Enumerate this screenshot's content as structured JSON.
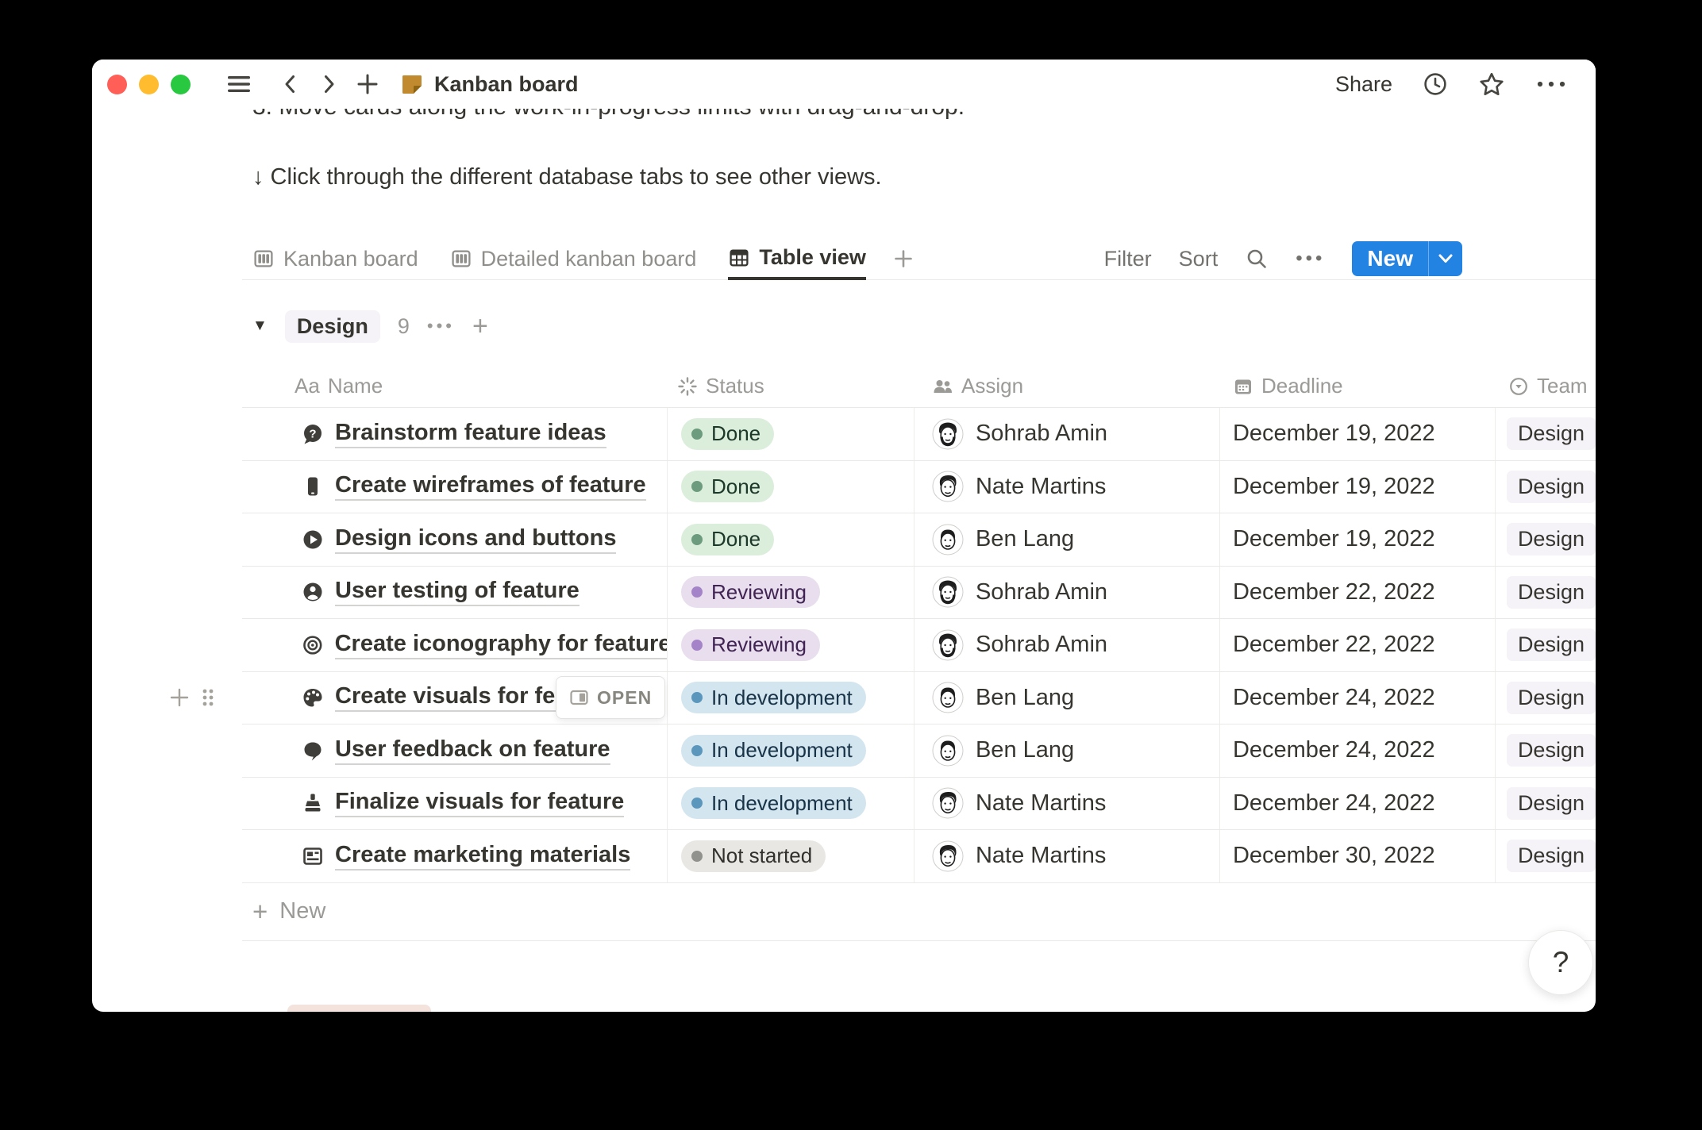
{
  "titlebar": {
    "title": "Kanban board",
    "share_label": "Share"
  },
  "intro": {
    "clipped_line": "3. Move cards along the work-in-progress limits with drag-and-drop.",
    "hint_line": "↓ Click through the different database tabs to see other views."
  },
  "toolbar": {
    "tabs": [
      {
        "label": "Kanban board",
        "icon": "board-icon",
        "active": false
      },
      {
        "label": "Detailed kanban board",
        "icon": "board-icon",
        "active": false
      },
      {
        "label": "Table view",
        "icon": "table-icon",
        "active": true
      }
    ],
    "filter_label": "Filter",
    "sort_label": "Sort",
    "new_label": "New"
  },
  "group": {
    "name": "Design",
    "count": "9"
  },
  "table": {
    "aa_icon_text": "Aa",
    "headers": [
      {
        "label": "Name",
        "icon": "text-icon"
      },
      {
        "label": "Status",
        "icon": "spinner-icon"
      },
      {
        "label": "Assign",
        "icon": "people-icon"
      },
      {
        "label": "Deadline",
        "icon": "calendar-icon"
      },
      {
        "label": "Team",
        "icon": "select-icon"
      }
    ],
    "rows": [
      {
        "icon": "question-bubble",
        "name": "Brainstorm feature ideas",
        "status": "Done",
        "status_color": "green",
        "assignee": "Sohrab Amin",
        "avatar": "sohrab",
        "deadline": "December 19, 2022",
        "team": "Design"
      },
      {
        "icon": "mobile-phone",
        "name": "Create wireframes of feature",
        "status": "Done",
        "status_color": "green",
        "assignee": "Nate Martins",
        "avatar": "nate",
        "deadline": "December 19, 2022",
        "team": "Design"
      },
      {
        "icon": "play-button",
        "name": "Design icons and buttons",
        "status": "Done",
        "status_color": "green",
        "assignee": "Ben Lang",
        "avatar": "ben",
        "deadline": "December 19, 2022",
        "team": "Design"
      },
      {
        "icon": "person",
        "name": "User testing of feature",
        "status": "Reviewing",
        "status_color": "purple",
        "assignee": "Sohrab Amin",
        "avatar": "sohrab",
        "deadline": "December 22, 2022",
        "team": "Design"
      },
      {
        "icon": "target",
        "name": "Create iconography for feature",
        "status": "Reviewing",
        "status_color": "purple",
        "assignee": "Sohrab Amin",
        "avatar": "sohrab",
        "deadline": "December 22, 2022",
        "team": "Design"
      },
      {
        "icon": "palette",
        "name": "Create visuals for feature",
        "status": "In development",
        "status_color": "blue",
        "assignee": "Ben Lang",
        "avatar": "ben",
        "deadline": "December 24, 2022",
        "team": "Design",
        "hovered": true
      },
      {
        "icon": "speech-bubble",
        "name": "User feedback on feature",
        "status": "In development",
        "status_color": "blue",
        "assignee": "Ben Lang",
        "avatar": "ben",
        "deadline": "December 24, 2022",
        "team": "Design"
      },
      {
        "icon": "paintbrush",
        "name": "Finalize visuals for feature",
        "status": "In development",
        "status_color": "blue",
        "assignee": "Nate Martins",
        "avatar": "nate",
        "deadline": "December 24, 2022",
        "team": "Design"
      },
      {
        "icon": "newspaper",
        "name": "Create marketing materials",
        "status": "Not started",
        "status_color": "gray",
        "assignee": "Nate Martins",
        "avatar": "nate",
        "deadline": "December 30, 2022",
        "team": "Design"
      }
    ],
    "new_row_label": "New"
  },
  "row_hover": {
    "open_label": "OPEN"
  },
  "help_button_label": "?",
  "colors": {
    "accent_blue": "#2383E2",
    "team_tag_bg": "#F5F2F8",
    "traffic_lights": [
      "#FF5F57",
      "#FEBC2E",
      "#28C840"
    ],
    "status": {
      "green": {
        "bg": "#DBEDDB",
        "dot": "#6C9B7D",
        "text": "#1C3829"
      },
      "purple": {
        "bg": "#E8DEEE",
        "dot": "#A583C8",
        "text": "#412454"
      },
      "blue": {
        "bg": "#D3E5EF",
        "dot": "#5B97BD",
        "text": "#183347"
      },
      "gray": {
        "bg": "#E8E7E4",
        "dot": "#91918E",
        "text": "#32302C"
      }
    }
  }
}
